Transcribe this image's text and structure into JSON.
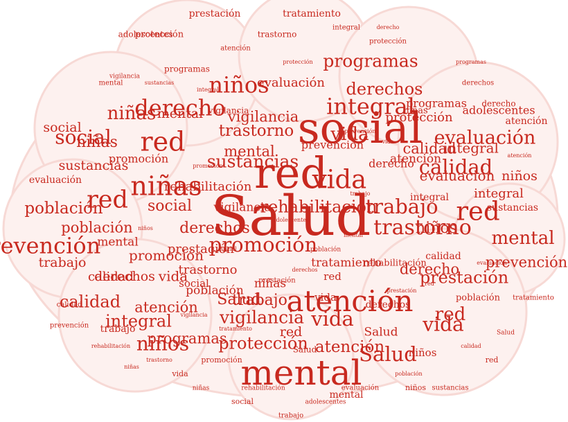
{
  "colors": {
    "background": "#ffffff",
    "brain_fill": "#fdf1ef",
    "brain_outline": "#f7d9d5",
    "word": "#c8291f"
  },
  "words": [
    {
      "text": "Salud",
      "weight": 1.0
    },
    {
      "text": "social",
      "weight": 0.78
    },
    {
      "text": "red",
      "weight": 0.78
    },
    {
      "text": "mental",
      "weight": 0.62
    },
    {
      "text": "atención",
      "weight": 0.52
    },
    {
      "text": "niñas",
      "weight": 0.48
    },
    {
      "text": "red",
      "weight": 0.48
    },
    {
      "text": "red",
      "weight": 0.46
    },
    {
      "text": "vida",
      "weight": 0.46
    },
    {
      "text": "red",
      "weight": 0.44
    },
    {
      "text": "prevención",
      "weight": 0.4
    },
    {
      "text": "derecho",
      "weight": 0.4
    },
    {
      "text": "integral",
      "weight": 0.4
    },
    {
      "text": "niños",
      "weight": 0.4
    },
    {
      "text": "trastorno",
      "weight": 0.38
    },
    {
      "text": "promoción",
      "weight": 0.36
    },
    {
      "text": "calidad",
      "weight": 0.36
    },
    {
      "text": "vida",
      "weight": 0.36
    },
    {
      "text": "trabajo",
      "weight": 0.36
    },
    {
      "text": "Salud",
      "weight": 0.36
    },
    {
      "text": "niños",
      "weight": 0.35
    },
    {
      "text": "social",
      "weight": 0.35
    },
    {
      "text": "vida",
      "weight": 0.35
    },
    {
      "text": "evaluación",
      "weight": 0.34
    },
    {
      "text": "red",
      "weight": 0.33
    },
    {
      "text": "mental",
      "weight": 0.33
    },
    {
      "text": "niñas",
      "weight": 0.33
    },
    {
      "text": "vida",
      "weight": 0.32
    },
    {
      "text": "vigilancia",
      "weight": 0.31
    },
    {
      "text": "programas",
      "weight": 0.31
    },
    {
      "text": "sustancias",
      "weight": 0.31
    },
    {
      "text": "prestación",
      "weight": 0.3
    },
    {
      "text": "derechos",
      "weight": 0.3
    },
    {
      "text": "rehabilitación",
      "weight": 0.3
    },
    {
      "text": "protección",
      "weight": 0.3
    },
    {
      "text": "calidad",
      "weight": 0.3
    },
    {
      "text": "integral",
      "weight": 0.3
    },
    {
      "text": "trastorno",
      "weight": 0.29
    },
    {
      "text": "población",
      "weight": 0.29
    },
    {
      "text": "atención",
      "weight": 0.29
    },
    {
      "text": "Salud",
      "weight": 0.28
    },
    {
      "text": "niñas",
      "weight": 0.28
    },
    {
      "text": "niños",
      "weight": 0.28
    },
    {
      "text": "trabajo",
      "weight": 0.27
    },
    {
      "text": "derechos",
      "weight": 0.27
    },
    {
      "text": "social",
      "weight": 0.27
    },
    {
      "text": "prevención",
      "weight": 0.26
    },
    {
      "text": "población",
      "weight": 0.26
    },
    {
      "text": "calidad",
      "weight": 0.26
    },
    {
      "text": "vigilancia",
      "weight": 0.26
    },
    {
      "text": "mental",
      "weight": 0.26
    },
    {
      "text": "atención",
      "weight": 0.26
    },
    {
      "text": "programas",
      "weight": 0.26
    },
    {
      "text": "derecho",
      "weight": 0.26
    },
    {
      "text": "evaluación",
      "weight": 0.25
    },
    {
      "text": "integral",
      "weight": 0.25
    },
    {
      "text": "promoción",
      "weight": 0.25
    },
    {
      "text": "vida",
      "weight": 0.25
    },
    {
      "text": "red",
      "weight": 0.24
    },
    {
      "text": "niños",
      "weight": 0.24
    },
    {
      "text": "trabajo",
      "weight": 0.24
    },
    {
      "text": "derechos",
      "weight": 0.24
    },
    {
      "text": "mental",
      "weight": 0.24
    },
    {
      "text": "social",
      "weight": 0.24
    },
    {
      "text": "sustancias",
      "weight": 0.24
    },
    {
      "text": "protección",
      "weight": 0.23
    },
    {
      "text": "rehabilitación",
      "weight": 0.23
    },
    {
      "text": "calidad",
      "weight": 0.22
    },
    {
      "text": "prestación",
      "weight": 0.22
    },
    {
      "text": "integral",
      "weight": 0.22
    },
    {
      "text": "trastorno",
      "weight": 0.22
    },
    {
      "text": "evaluación",
      "weight": 0.22
    },
    {
      "text": "vigilancia",
      "weight": 0.21
    },
    {
      "text": "tratamiento",
      "weight": 0.21
    },
    {
      "text": "atención",
      "weight": 0.21
    },
    {
      "text": "Salud",
      "weight": 0.21
    },
    {
      "text": "niñas",
      "weight": 0.21
    },
    {
      "text": "población",
      "weight": 0.21
    },
    {
      "text": "mental",
      "weight": 0.21
    },
    {
      "text": "programas",
      "weight": 0.2
    },
    {
      "text": "adolescentes",
      "weight": 0.2
    },
    {
      "text": "prevención",
      "weight": 0.2
    },
    {
      "text": "derecho",
      "weight": 0.2
    },
    {
      "text": "promoción",
      "weight": 0.2
    },
    {
      "text": "vida",
      "weight": 0.19
    },
    {
      "text": "niños",
      "weight": 0.19
    },
    {
      "text": "social",
      "weight": 0.19
    },
    {
      "text": "red",
      "weight": 0.19
    },
    {
      "text": "trabajo",
      "weight": 0.18
    },
    {
      "text": "derechos",
      "weight": 0.18
    },
    {
      "text": "calidad",
      "weight": 0.18
    },
    {
      "text": "integral",
      "weight": 0.18
    },
    {
      "text": "sustancias",
      "weight": 0.18
    },
    {
      "text": "tratamiento",
      "weight": 0.17
    },
    {
      "text": "mental",
      "weight": 0.17
    },
    {
      "text": "prestación",
      "weight": 0.17
    },
    {
      "text": "atención",
      "weight": 0.17
    },
    {
      "text": "evaluación",
      "weight": 0.17
    },
    {
      "text": "protección",
      "weight": 0.16
    },
    {
      "text": "rehabilitación",
      "weight": 0.16
    },
    {
      "text": "población",
      "weight": 0.16
    },
    {
      "text": "niñas",
      "weight": 0.16
    },
    {
      "text": "vigilancia",
      "weight": 0.15
    },
    {
      "text": "Salud",
      "weight": 0.15
    },
    {
      "text": "adolescentes",
      "weight": 0.15
    },
    {
      "text": "programas",
      "weight": 0.15
    },
    {
      "text": "trastorno",
      "weight": 0.15
    },
    {
      "text": "derecho",
      "weight": 0.15
    },
    {
      "text": "promoción",
      "weight": 0.14
    },
    {
      "text": "social",
      "weight": 0.14
    },
    {
      "text": "niños",
      "weight": 0.14
    },
    {
      "text": "vida",
      "weight": 0.14
    },
    {
      "text": "red",
      "weight": 0.14
    },
    {
      "text": "calidad",
      "weight": 0.13
    },
    {
      "text": "integral",
      "weight": 0.13
    },
    {
      "text": "mental",
      "weight": 0.13
    },
    {
      "text": "derechos",
      "weight": 0.13
    },
    {
      "text": "trabajo",
      "weight": 0.13
    },
    {
      "text": "prevención",
      "weight": 0.13
    },
    {
      "text": "tratamiento",
      "weight": 0.12
    },
    {
      "text": "sustancias",
      "weight": 0.12
    },
    {
      "text": "evaluación",
      "weight": 0.12
    },
    {
      "text": "atención",
      "weight": 0.12
    },
    {
      "text": "protección",
      "weight": 0.12
    },
    {
      "text": "prestación",
      "weight": 0.12
    },
    {
      "text": "población",
      "weight": 0.11
    },
    {
      "text": "vigilancia",
      "weight": 0.11
    },
    {
      "text": "rehabilitación",
      "weight": 0.11
    },
    {
      "text": "niñas",
      "weight": 0.11
    },
    {
      "text": "Salud",
      "weight": 0.11
    },
    {
      "text": "adolescentes",
      "weight": 0.11
    },
    {
      "text": "programas",
      "weight": 0.1
    },
    {
      "text": "trastorno",
      "weight": 0.1
    },
    {
      "text": "derecho",
      "weight": 0.1
    },
    {
      "text": "promoción",
      "weight": 0.1
    },
    {
      "text": "social",
      "weight": 0.1
    },
    {
      "text": "niños",
      "weight": 0.1
    },
    {
      "text": "vida",
      "weight": 0.1
    },
    {
      "text": "red",
      "weight": 0.1
    },
    {
      "text": "calidad",
      "weight": 0.1
    },
    {
      "text": "integral",
      "weight": 0.1
    },
    {
      "text": "mental",
      "weight": 0.1
    },
    {
      "text": "derechos",
      "weight": 0.1
    },
    {
      "text": "trabajo",
      "weight": 0.1
    },
    {
      "text": "tratamiento",
      "weight": 0.1
    },
    {
      "text": "sustancias",
      "weight": 0.1
    },
    {
      "text": "evaluación",
      "weight": 0.1
    },
    {
      "text": "atención",
      "weight": 0.1
    },
    {
      "text": "protección",
      "weight": 0.1
    },
    {
      "text": "prestación",
      "weight": 0.1
    },
    {
      "text": "población",
      "weight": 0.1
    },
    {
      "text": "vigilancia",
      "weight": 0.1
    },
    {
      "text": "rehabilitación",
      "weight": 0.1
    },
    {
      "text": "niñas",
      "weight": 0.1
    },
    {
      "text": "adolescentes",
      "weight": 0.1
    },
    {
      "text": "prevención",
      "weight": 0.1
    }
  ]
}
